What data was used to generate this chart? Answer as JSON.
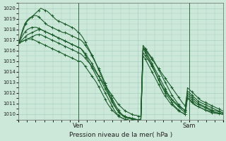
{
  "background_color": "#cce8d8",
  "grid_color": "#a8cfc0",
  "line_color": "#1a5c2a",
  "xlabel": "Pression niveau de la mer( hPa )",
  "ylim": [
    1009.5,
    1020.5
  ],
  "yticks": [
    1010,
    1011,
    1012,
    1013,
    1014,
    1015,
    1016,
    1017,
    1018,
    1019,
    1020
  ],
  "xtick_labels": [
    "",
    "Ven",
    "",
    "Sam",
    ""
  ],
  "xtick_positions": [
    0,
    28,
    56,
    80,
    96
  ],
  "vlines": [
    28,
    80
  ],
  "xlim": [
    0,
    96
  ],
  "series": [
    [
      1016.7,
      1016.8,
      1016.9,
      1017.0,
      1017.1,
      1017.2,
      1017.3,
      1017.4,
      1017.5,
      1017.5,
      1017.5,
      1017.4,
      1017.3,
      1017.2,
      1017.1,
      1017.0,
      1016.9,
      1016.8,
      1016.7,
      1016.6,
      1016.5,
      1016.4,
      1016.3,
      1016.2,
      1016.1,
      1016.0,
      1015.9,
      1015.8,
      1015.7,
      1015.5,
      1015.3,
      1015.0,
      1014.8,
      1014.5,
      1014.2,
      1013.9,
      1013.6,
      1013.3,
      1013.0,
      1012.7,
      1012.4,
      1012.1,
      1011.8,
      1011.5,
      1011.2,
      1010.9,
      1010.7,
      1010.5,
      1010.3,
      1010.2,
      1010.1,
      1010.0,
      1009.9,
      1009.9,
      1009.8,
      1009.8,
      1016.3,
      1016.1,
      1015.8,
      1015.5,
      1015.2,
      1014.9,
      1014.6,
      1014.3,
      1014.0,
      1013.7,
      1013.4,
      1013.1,
      1012.8,
      1012.5,
      1012.2,
      1011.9,
      1011.6,
      1011.3,
      1011.0,
      1010.8,
      1012.2,
      1012.0,
      1011.8,
      1011.6,
      1011.4,
      1011.2,
      1011.1,
      1011.0,
      1010.9,
      1010.8,
      1010.7,
      1010.6,
      1010.5,
      1010.4,
      1010.3,
      1010.2,
      1010.1
    ],
    [
      1016.7,
      1016.9,
      1017.1,
      1017.3,
      1017.5,
      1017.6,
      1017.7,
      1017.8,
      1017.9,
      1018.0,
      1018.0,
      1017.9,
      1017.8,
      1017.7,
      1017.6,
      1017.5,
      1017.4,
      1017.3,
      1017.2,
      1017.1,
      1017.0,
      1016.9,
      1016.8,
      1016.7,
      1016.6,
      1016.5,
      1016.4,
      1016.3,
      1016.2,
      1016.0,
      1015.7,
      1015.4,
      1015.1,
      1014.8,
      1014.4,
      1014.0,
      1013.6,
      1013.2,
      1012.8,
      1012.4,
      1012.0,
      1011.6,
      1011.2,
      1010.8,
      1010.5,
      1010.2,
      1010.0,
      1009.9,
      1009.8,
      1009.7,
      1009.7,
      1009.6,
      1009.6,
      1009.5,
      1009.5,
      1009.5,
      1016.5,
      1016.2,
      1015.9,
      1015.6,
      1015.3,
      1015.0,
      1014.6,
      1014.2,
      1013.8,
      1013.4,
      1013.0,
      1012.6,
      1012.2,
      1011.8,
      1011.5,
      1011.2,
      1010.9,
      1010.7,
      1010.5,
      1010.3,
      1011.8,
      1011.6,
      1011.4,
      1011.2,
      1011.0,
      1010.9,
      1010.8,
      1010.7,
      1010.6,
      1010.5,
      1010.4,
      1010.3,
      1010.2,
      1010.15,
      1010.1,
      1010.05,
      1010.0
    ],
    [
      1016.7,
      1017.1,
      1017.5,
      1017.8,
      1018.0,
      1018.1,
      1018.2,
      1018.2,
      1018.2,
      1018.1,
      1018.0,
      1017.9,
      1017.8,
      1017.7,
      1017.6,
      1017.5,
      1017.4,
      1017.3,
      1017.2,
      1017.1,
      1017.0,
      1016.9,
      1016.8,
      1016.7,
      1016.6,
      1016.5,
      1016.4,
      1016.3,
      1016.2,
      1015.9,
      1015.6,
      1015.2,
      1014.8,
      1014.4,
      1014.0,
      1013.6,
      1013.2,
      1012.8,
      1012.4,
      1012.0,
      1011.6,
      1011.2,
      1010.8,
      1010.4,
      1010.1,
      1009.9,
      1009.7,
      1009.6,
      1009.5,
      1009.5,
      1009.4,
      1009.4,
      1009.4,
      1009.4,
      1009.4,
      1009.4,
      1015.5,
      1015.2,
      1014.8,
      1014.4,
      1014.0,
      1013.6,
      1013.2,
      1012.8,
      1012.4,
      1012.0,
      1011.7,
      1011.4,
      1011.1,
      1010.9,
      1010.7,
      1010.5,
      1010.3,
      1010.2,
      1010.1,
      1010.0,
      1011.6,
      1011.4,
      1011.2,
      1011.0,
      1010.8,
      1010.7,
      1010.6,
      1010.5,
      1010.4,
      1010.3,
      1010.2,
      1010.15,
      1010.1,
      1010.08,
      1010.05,
      1010.02,
      1010.0
    ],
    [
      1016.7,
      1017.3,
      1017.9,
      1018.5,
      1018.8,
      1019.0,
      1019.2,
      1019.4,
      1019.6,
      1019.8,
      1020.0,
      1019.9,
      1019.8,
      1019.7,
      1019.5,
      1019.3,
      1019.1,
      1018.9,
      1018.8,
      1018.7,
      1018.6,
      1018.5,
      1018.4,
      1018.3,
      1018.2,
      1018.1,
      1017.9,
      1017.7,
      1017.5,
      1017.2,
      1016.8,
      1016.4,
      1016.0,
      1015.6,
      1015.2,
      1014.7,
      1014.2,
      1013.7,
      1013.2,
      1012.7,
      1012.2,
      1011.7,
      1011.3,
      1010.9,
      1010.5,
      1010.2,
      1010.0,
      1009.8,
      1009.7,
      1009.6,
      1009.6,
      1009.5,
      1009.5,
      1009.5,
      1009.4,
      1009.4,
      1016.2,
      1015.8,
      1015.4,
      1015.0,
      1014.6,
      1014.2,
      1013.7,
      1013.2,
      1012.8,
      1012.4,
      1012.0,
      1011.7,
      1011.4,
      1011.1,
      1010.8,
      1010.6,
      1010.4,
      1010.2,
      1010.1,
      1010.0,
      1012.5,
      1012.3,
      1012.1,
      1011.9,
      1011.7,
      1011.5,
      1011.3,
      1011.2,
      1011.1,
      1011.0,
      1010.9,
      1010.8,
      1010.7,
      1010.6,
      1010.5,
      1010.4,
      1010.3
    ],
    [
      1016.7,
      1016.8,
      1016.9,
      1017.0,
      1017.1,
      1017.1,
      1017.1,
      1017.0,
      1016.9,
      1016.8,
      1016.7,
      1016.6,
      1016.5,
      1016.4,
      1016.3,
      1016.2,
      1016.1,
      1016.0,
      1015.9,
      1015.8,
      1015.7,
      1015.6,
      1015.5,
      1015.4,
      1015.3,
      1015.2,
      1015.1,
      1015.0,
      1015.0,
      1014.8,
      1014.5,
      1014.2,
      1013.9,
      1013.6,
      1013.3,
      1013.0,
      1012.6,
      1012.2,
      1011.8,
      1011.4,
      1011.0,
      1010.7,
      1010.4,
      1010.2,
      1010.0,
      1009.8,
      1009.7,
      1009.6,
      1009.5,
      1009.5,
      1009.4,
      1009.4,
      1009.4,
      1009.4,
      1009.4,
      1009.4,
      1015.8,
      1015.5,
      1015.2,
      1014.9,
      1014.5,
      1014.1,
      1013.7,
      1013.3,
      1012.9,
      1012.5,
      1012.2,
      1011.9,
      1011.6,
      1011.4,
      1011.2,
      1011.0,
      1010.8,
      1010.6,
      1010.5,
      1010.4,
      1011.5,
      1011.3,
      1011.1,
      1010.9,
      1010.8,
      1010.7,
      1010.6,
      1010.5,
      1010.4,
      1010.35,
      1010.3,
      1010.25,
      1010.2,
      1010.15,
      1010.1,
      1010.05,
      1010.0
    ],
    [
      1016.7,
      1017.4,
      1018.1,
      1018.6,
      1018.9,
      1019.1,
      1019.2,
      1019.3,
      1019.3,
      1019.2,
      1019.0,
      1018.8,
      1018.6,
      1018.4,
      1018.3,
      1018.2,
      1018.1,
      1018.0,
      1017.9,
      1017.8,
      1017.7,
      1017.7,
      1017.6,
      1017.5,
      1017.4,
      1017.3,
      1017.2,
      1017.1,
      1017.0,
      1016.8,
      1016.5,
      1016.2,
      1015.9,
      1015.5,
      1015.1,
      1014.7,
      1014.3,
      1013.9,
      1013.4,
      1012.9,
      1012.4,
      1011.9,
      1011.5,
      1011.1,
      1010.7,
      1010.4,
      1010.1,
      1009.9,
      1009.8,
      1009.7,
      1009.6,
      1009.6,
      1009.5,
      1009.5,
      1009.5,
      1009.5,
      1016.3,
      1016.0,
      1015.6,
      1015.2,
      1014.8,
      1014.4,
      1014.0,
      1013.6,
      1013.2,
      1012.8,
      1012.4,
      1012.0,
      1011.7,
      1011.4,
      1011.1,
      1010.9,
      1010.7,
      1010.5,
      1010.3,
      1010.2,
      1012.0,
      1011.8,
      1011.6,
      1011.4,
      1011.2,
      1011.0,
      1010.9,
      1010.8,
      1010.7,
      1010.6,
      1010.5,
      1010.4,
      1010.35,
      1010.3,
      1010.25,
      1010.2,
      1010.15
    ]
  ],
  "marker": "+",
  "markersize": 3,
  "linewidth": 0.8
}
